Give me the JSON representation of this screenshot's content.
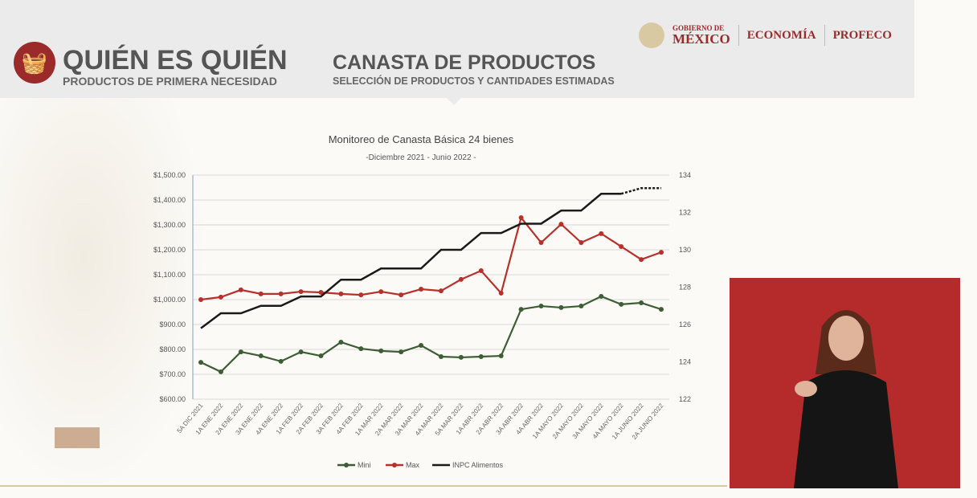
{
  "header": {
    "logo_icon": "basket-icon",
    "title": "QUIÉN ES QUIÉN",
    "subtitle": "PRODUCTOS DE PRIMERA NECESIDAD",
    "section_title": "CANASTA DE PRODUCTOS",
    "section_subtitle": "SELECCIÓN DE PRODUCTOS Y CANTIDADES ESTIMADAS",
    "gob_line1": "GOBIERNO DE",
    "gob_line2": "MÉXICO",
    "economia": "ECONOMÍA",
    "profeco": "PROFECO",
    "brand_color": "#9b2a2a"
  },
  "chart_data": {
    "type": "line",
    "title": "Monitoreo de Canasta Básica 24 bienes",
    "subtitle": "-Diciembre 2021 - Junio 2022 -",
    "categories": [
      "5A DIC 2021",
      "1A ENE 2022",
      "2A ENE 2022",
      "3A ENE 2022",
      "4A ENE 2022",
      "1A FEB 2022",
      "2A FEB 2022",
      "3A FEB 2022",
      "4A FEB 2022",
      "1A MAR 2022",
      "2A MAR 2022",
      "3A MAR 2022",
      "4A MAR 2022",
      "5A MAR 2022",
      "1A ABR 2022",
      "2A ABR 2022",
      "3A ABR 2022",
      "4A ABR 2022",
      "1A MAYO 2022",
      "2A MAYO 2022",
      "3A MAYO 2022",
      "4A MAYO 2022",
      "1A JUNIO 2022",
      "2A JUNIO 2022"
    ],
    "ylim": [
      600,
      1500
    ],
    "yticks": [
      "$600.00",
      "$700.00",
      "$800.00",
      "$900.00",
      "$1,000.00",
      "$1,100.00",
      "$1,200.00",
      "$1,300.00",
      "$1,400.00",
      "$1,500.00"
    ],
    "y2lim": [
      122,
      134
    ],
    "y2ticks": [
      "122",
      "124",
      "126",
      "128",
      "130",
      "132",
      "134"
    ],
    "grid": true,
    "legend_position": "bottom",
    "series": [
      {
        "name": "Mini",
        "color": "#3d5e35",
        "axis": "left",
        "values": [
          748,
          710,
          790,
          774,
          752,
          790,
          774,
          829,
          803,
          794,
          790,
          816,
          771,
          768,
          771,
          774,
          961,
          974,
          968,
          974,
          1013,
          981,
          987,
          961
        ]
      },
      {
        "name": "Max",
        "color": "#b8302a",
        "axis": "left",
        "values": [
          1000,
          1010,
          1039,
          1023,
          1023,
          1032,
          1029,
          1023,
          1019,
          1032,
          1019,
          1042,
          1035,
          1081,
          1116,
          1026,
          1329,
          1229,
          1303,
          1229,
          1265,
          1213,
          1161,
          1190
        ]
      },
      {
        "name": "INPC Alimentos",
        "color": "#1a1a1a",
        "axis": "right",
        "step": true,
        "dashed_from_index": 22,
        "values": [
          125.8,
          126.6,
          126.6,
          127.0,
          127.0,
          127.5,
          127.5,
          128.4,
          128.4,
          129.0,
          129.0,
          129.0,
          130.0,
          130.0,
          130.9,
          130.9,
          131.4,
          131.4,
          132.1,
          132.1,
          133.0,
          133.0,
          133.3,
          133.3
        ]
      }
    ]
  }
}
